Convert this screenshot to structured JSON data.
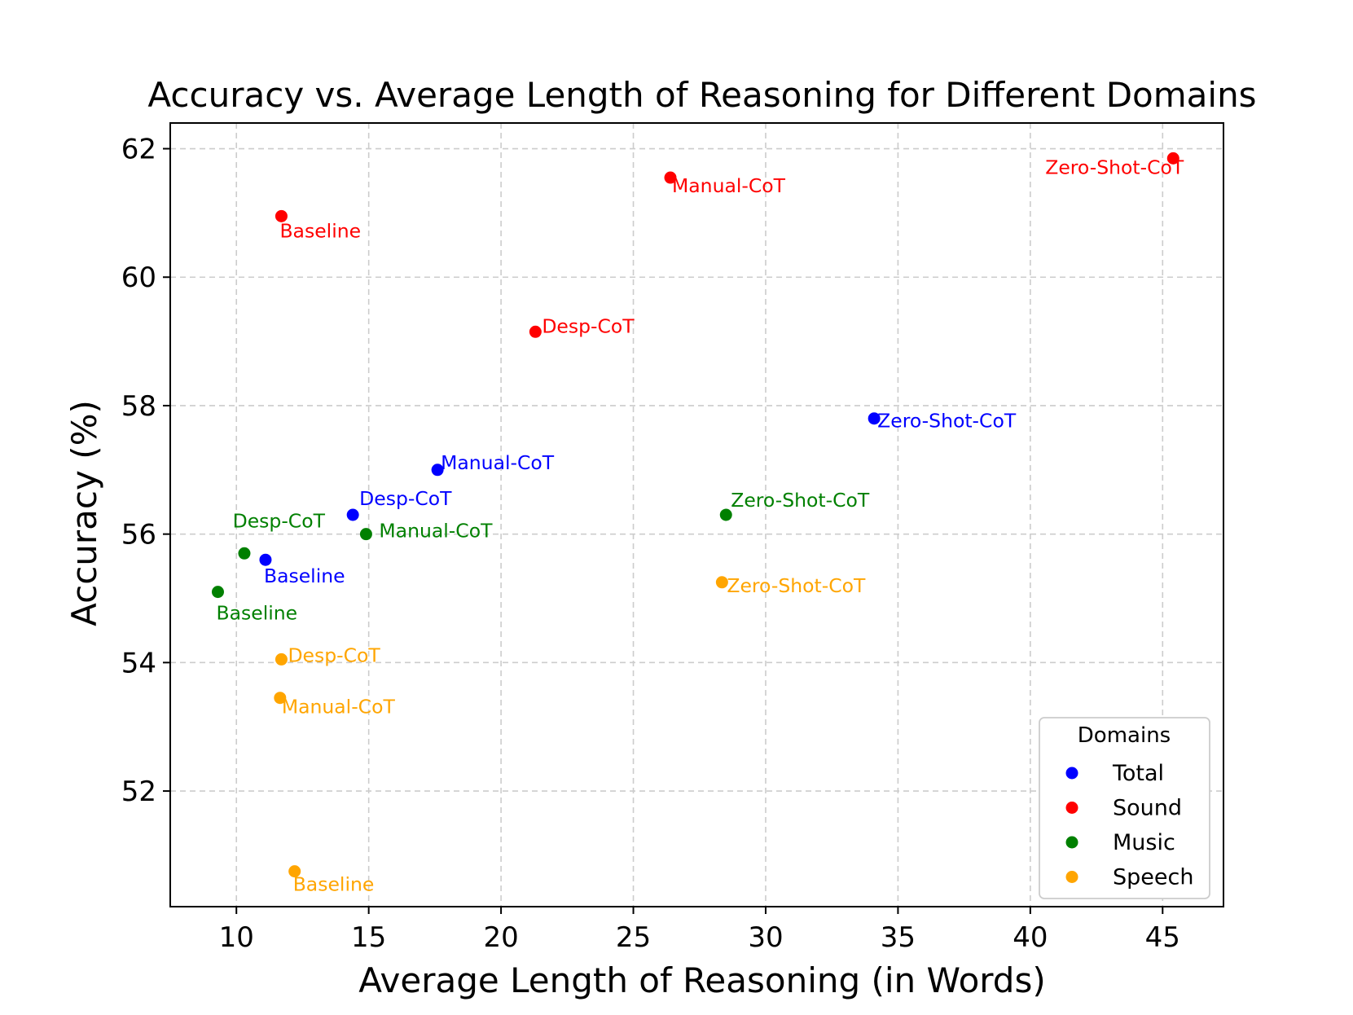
{
  "chart_data": {
    "type": "scatter",
    "title": "Accuracy vs. Average Length of Reasoning for Different Domains",
    "xlabel": "Average Length of Reasoning (in Words)",
    "ylabel": "Accuracy (%)",
    "xlim": [
      7.5,
      47.3
    ],
    "ylim": [
      50.2,
      62.4
    ],
    "xticks": [
      10,
      15,
      20,
      25,
      30,
      35,
      40,
      45
    ],
    "yticks": [
      52,
      54,
      56,
      58,
      60,
      62
    ],
    "grid": true,
    "legend": {
      "title": "Domains",
      "placement": "bottom-right"
    },
    "series": [
      {
        "name": "Total",
        "color": "#0000ff",
        "points": [
          {
            "x": 11.1,
            "y": 55.6,
            "label": "Baseline"
          },
          {
            "x": 14.4,
            "y": 56.3,
            "label": "Desp-CoT"
          },
          {
            "x": 17.6,
            "y": 57.0,
            "label": "Manual-CoT"
          },
          {
            "x": 34.1,
            "y": 57.8,
            "label": "Zero-Shot-CoT"
          }
        ]
      },
      {
        "name": "Sound",
        "color": "#ff0000",
        "points": [
          {
            "x": 11.7,
            "y": 60.95,
            "label": "Baseline"
          },
          {
            "x": 21.3,
            "y": 59.15,
            "label": "Desp-CoT"
          },
          {
            "x": 26.4,
            "y": 61.55,
            "label": "Manual-CoT"
          },
          {
            "x": 45.4,
            "y": 61.85,
            "label": "Zero-Shot-CoT"
          }
        ]
      },
      {
        "name": "Music",
        "color": "#008000",
        "points": [
          {
            "x": 9.3,
            "y": 55.1,
            "label": "Baseline"
          },
          {
            "x": 10.3,
            "y": 55.7,
            "label": "Desp-CoT"
          },
          {
            "x": 14.9,
            "y": 56.0,
            "label": "Manual-CoT"
          },
          {
            "x": 28.5,
            "y": 56.3,
            "label": "Zero-Shot-CoT"
          }
        ]
      },
      {
        "name": "Speech",
        "color": "#ffa500",
        "points": [
          {
            "x": 12.2,
            "y": 50.75,
            "label": "Baseline"
          },
          {
            "x": 11.7,
            "y": 54.05,
            "label": "Desp-CoT"
          },
          {
            "x": 11.65,
            "y": 53.45,
            "label": "Manual-CoT"
          },
          {
            "x": 28.35,
            "y": 55.25,
            "label": "Zero-Shot-CoT"
          }
        ]
      }
    ]
  }
}
